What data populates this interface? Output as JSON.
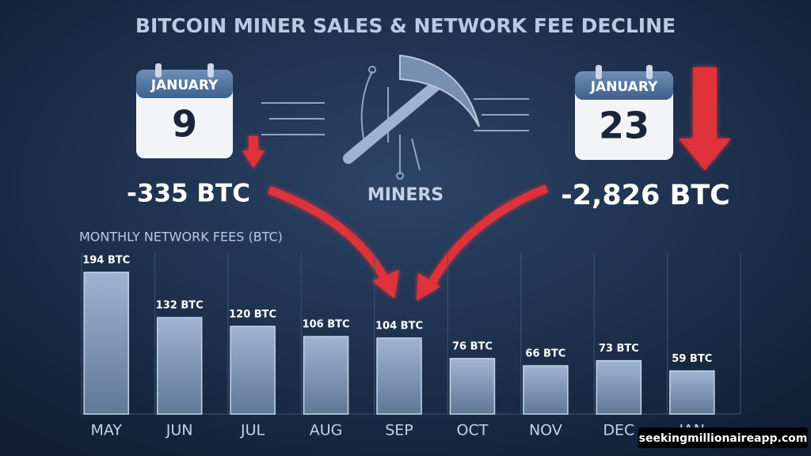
{
  "title": "BITCOIN MINER SALES & NETWORK FEE DECLINE",
  "left_event": {
    "month": "JANUARY",
    "day": "9",
    "change": "-335 BTC"
  },
  "center_label": "MINERS",
  "right_event": {
    "month": "JANUARY",
    "day": "23",
    "change": "-2,826 BTC"
  },
  "watermark": "seekingmillionaireapp.com",
  "chart_data": {
    "type": "bar",
    "title": "MONTHLY NETWORK FEES (BTC)",
    "categories": [
      "MAY",
      "JUN",
      "JUL",
      "AUG",
      "SEP",
      "OCT",
      "NOV",
      "DEC",
      "JAN"
    ],
    "values": [
      194,
      132,
      120,
      106,
      104,
      76,
      66,
      73,
      59
    ],
    "value_labels": [
      "194 BTC",
      "132 BTC",
      "120 BTC",
      "106 BTC",
      "104 BTC",
      "76 BTC",
      "66 BTC",
      "73 BTC",
      "59 BTC"
    ],
    "color": "#8fa5c2",
    "ylim": [
      0,
      220
    ]
  }
}
